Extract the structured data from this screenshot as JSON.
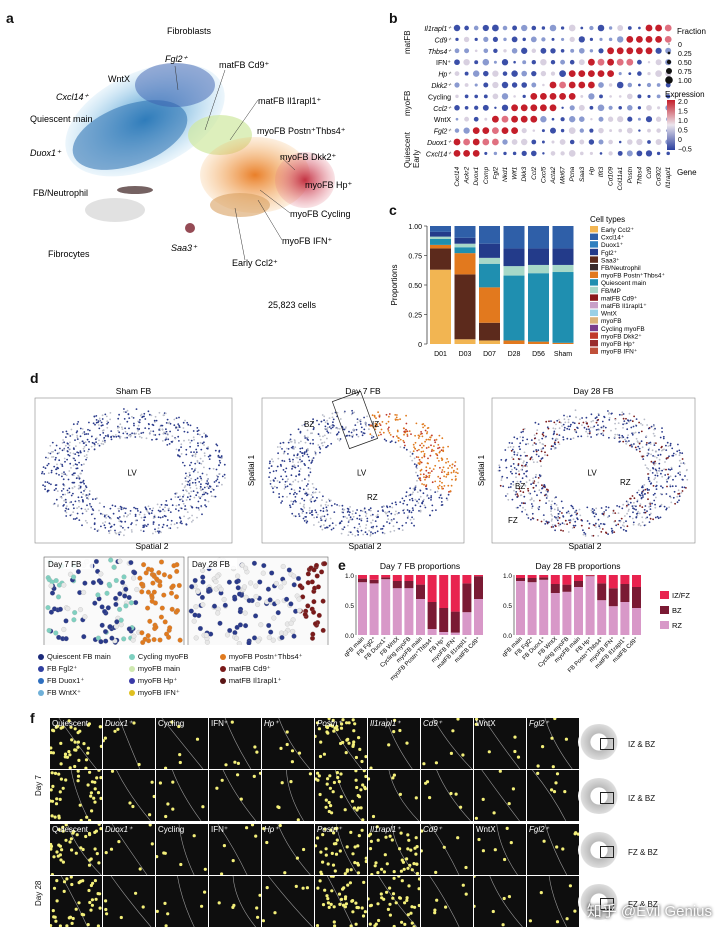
{
  "panels": {
    "a": "a",
    "b": "b",
    "c": "c",
    "d": "d",
    "e": "e",
    "f": "f"
  },
  "panel_a": {
    "title": "Fibroblasts",
    "cell_count": "25,823 cells",
    "labels": [
      "Fgl2⁺",
      "matFB Cd9⁺",
      "WntX",
      "Cxcl14⁺",
      "matFB Il1rapl1⁺",
      "Quiescent main",
      "myoFB Postn⁺Thbs4⁺",
      "Duox1⁺",
      "myoFB Dkk2⁺",
      "myoFB Hp⁺",
      "FB/Neutrophil",
      "myoFB Cycling",
      "Fibrocytes",
      "myoFB IFN⁺",
      "Saa3⁺",
      "Early Ccl2⁺"
    ]
  },
  "panel_b": {
    "rows": [
      "Il1rapl1⁺",
      "Cd9⁺",
      "Thbs4⁺",
      "IFN⁺",
      "Hp⁺",
      "Dkk2⁺",
      "Cycling",
      "Ccl2⁺",
      "WntX",
      "Fgl2⁺",
      "Duox1⁺",
      "Cxcl14⁺"
    ],
    "groups": [
      "matFB",
      "myoFB",
      "Quiescent Early"
    ],
    "genes": [
      "Cxcl14",
      "Ackr2",
      "Duox1",
      "Comp",
      "Fgl2",
      "Nkd1",
      "Wif1",
      "Dkk3",
      "Ccl2",
      "Cxcl5",
      "Acta2",
      "Mki67",
      "Pcna",
      "Saa3",
      "Hp",
      "Ifit3",
      "Cd109",
      "Col11a1",
      "Postn",
      "Thbs4",
      "Cd9",
      "Cd302",
      "Il1rapl1"
    ],
    "gene_axis": "Gene",
    "fraction_title": "Fraction",
    "fraction_values": [
      "0",
      "0.25",
      "0.50",
      "0.75",
      "1.00"
    ],
    "expression_title": "Expression",
    "expression_values": [
      "2.0",
      "1.5",
      "1.0",
      "0.5",
      "0",
      "−0.5"
    ]
  },
  "panel_c": {
    "ylabel": "Proportions",
    "yticks": [
      "0",
      "0.25",
      "0.50",
      "0.75",
      "1.00"
    ],
    "legend_title": "Cell types",
    "legend": [
      {
        "name": "Early Ccl2⁺",
        "color": "#f2b552"
      },
      {
        "name": "Cxcl14⁺",
        "color": "#2f5fa8"
      },
      {
        "name": "Duox1⁺",
        "color": "#2e7fbf"
      },
      {
        "name": "Fgl2⁺",
        "color": "#233b8a"
      },
      {
        "name": "Saa3⁺",
        "color": "#5c2a1c"
      },
      {
        "name": "FB/Neutrophil",
        "color": "#3b2b2b"
      },
      {
        "name": "myoFB Postn⁺Thbs4⁺",
        "color": "#e2791e"
      },
      {
        "name": "Quiescent main",
        "color": "#1f8fb0"
      },
      {
        "name": "FB/MP",
        "color": "#a7d8c8"
      },
      {
        "name": "matFB Cd9⁺",
        "color": "#8b1a1a"
      },
      {
        "name": "matFB Il1rapl1⁺",
        "color": "#c8a0c8"
      },
      {
        "name": "WntX",
        "color": "#9ad0e6"
      },
      {
        "name": "myoFB",
        "color": "#dbb27a"
      },
      {
        "name": "Cycling myoFB",
        "color": "#7a3d8c"
      },
      {
        "name": "myoFB Dkk2⁺",
        "color": "#c0392b"
      },
      {
        "name": "myoFB Hp⁺",
        "color": "#9b2c2c"
      },
      {
        "name": "myoFB IFN⁺",
        "color": "#c0503a"
      }
    ]
  },
  "chart_data": [
    {
      "type": "bar",
      "title": "",
      "xlabel": "",
      "ylabel": "Proportions",
      "ylim": [
        0,
        1
      ],
      "categories": [
        "D01",
        "D03",
        "D07",
        "D28",
        "D56",
        "Sham"
      ],
      "series": [
        {
          "name": "Early Ccl2⁺",
          "values": [
            0.63,
            0.04,
            0.03,
            0.0,
            0.0,
            0.0
          ]
        },
        {
          "name": "Saa3⁺",
          "values": [
            0.18,
            0.55,
            0.15,
            0.0,
            0.0,
            0.0
          ]
        },
        {
          "name": "myoFB Postn⁺Thbs4⁺",
          "values": [
            0.03,
            0.18,
            0.3,
            0.03,
            0.02,
            0.01
          ]
        },
        {
          "name": "Quiescent main",
          "values": [
            0.05,
            0.05,
            0.2,
            0.55,
            0.58,
            0.6
          ]
        },
        {
          "name": "FB/MP",
          "values": [
            0.02,
            0.03,
            0.05,
            0.08,
            0.07,
            0.06
          ]
        },
        {
          "name": "Fgl2⁺",
          "values": [
            0.04,
            0.05,
            0.12,
            0.15,
            0.14,
            0.14
          ]
        },
        {
          "name": "Cxcl14⁺",
          "values": [
            0.05,
            0.1,
            0.15,
            0.19,
            0.19,
            0.19
          ]
        }
      ]
    },
    {
      "type": "bar",
      "title": "Day 7 FB proportions",
      "ylim": [
        0,
        1
      ],
      "categories": [
        "qFB main",
        "FB Fgl2⁺",
        "FB Duox1⁺",
        "FB WntX",
        "Cycling myoFB",
        "myoFB main",
        "myoFB Postn⁺Thbs4⁺",
        "FB Hp⁺",
        "myoFB IFN⁺",
        "matFB Il1rapl1⁺",
        "matFB Cd9⁺"
      ],
      "series": [
        {
          "name": "RZ",
          "values": [
            0.88,
            0.86,
            0.93,
            0.78,
            0.78,
            0.6,
            0.1,
            0.05,
            0.04,
            0.38,
            0.6
          ]
        },
        {
          "name": "BZ",
          "values": [
            0.06,
            0.06,
            0.03,
            0.12,
            0.12,
            0.24,
            0.45,
            0.4,
            0.35,
            0.48,
            0.38
          ]
        },
        {
          "name": "IZ/FZ",
          "values": [
            0.06,
            0.08,
            0.04,
            0.1,
            0.1,
            0.16,
            0.45,
            0.55,
            0.61,
            0.14,
            0.02
          ]
        }
      ]
    },
    {
      "type": "bar",
      "title": "Day 28 FB proportions",
      "ylim": [
        0,
        1
      ],
      "categories": [
        "qFB main",
        "FB Fgl2⁺",
        "FB Duox1⁺",
        "FB WntX",
        "Cycling myoFB",
        "myoFB main",
        "FB Hp⁺",
        "FB Postn⁺Thbs4⁺",
        "myoFB IFN⁺",
        "matFB Il1rapl1⁺",
        "matFB Cd9⁺"
      ],
      "series": [
        {
          "name": "RZ",
          "values": [
            0.9,
            0.88,
            0.92,
            0.7,
            0.72,
            0.8,
            0.98,
            0.58,
            0.48,
            0.55,
            0.45
          ]
        },
        {
          "name": "BZ",
          "values": [
            0.05,
            0.07,
            0.04,
            0.15,
            0.12,
            0.1,
            0.01,
            0.28,
            0.3,
            0.3,
            0.35
          ]
        },
        {
          "name": "IZ/FZ",
          "values": [
            0.05,
            0.05,
            0.04,
            0.15,
            0.16,
            0.1,
            0.01,
            0.14,
            0.22,
            0.15,
            0.2
          ]
        }
      ]
    }
  ],
  "panel_d": {
    "titles": [
      "Sham FB",
      "Day 7 FB",
      "Day 28 FB"
    ],
    "spatial1": "Spatial 1",
    "spatial2": "Spatial 2",
    "lv": "LV",
    "bz": "BZ",
    "iz": "IZ",
    "rz": "RZ",
    "fz": "FZ",
    "zoom1": "Day 7 FB",
    "zoom2": "Day 28 FB",
    "legend": [
      {
        "name": "Quiescent FB main",
        "color": "#1b2a7a"
      },
      {
        "name": "Cycling myoFB",
        "color": "#7fd0c0"
      },
      {
        "name": "myoFB Postn⁺Thbs4⁺",
        "color": "#e07a1e"
      },
      {
        "name": "FB Fgl2⁺",
        "color": "#2f3fa0"
      },
      {
        "name": "myoFB main",
        "color": "#cfe8b0"
      },
      {
        "name": "matFB Cd9⁺",
        "color": "#7a1a1a"
      },
      {
        "name": "FB Duox1⁺",
        "color": "#2e6fbf"
      },
      {
        "name": "myoFB Hp⁺",
        "color": "#3a3aa8"
      },
      {
        "name": "matFB Il1rapl1⁺",
        "color": "#5a1515"
      },
      {
        "name": "FB WntX⁺",
        "color": "#6fb0d8"
      },
      {
        "name": "myoFB IFN⁺",
        "color": "#e0c020"
      }
    ]
  },
  "panel_e": {
    "legend": [
      {
        "name": "IZ/FZ",
        "color": "#e8234f"
      },
      {
        "name": "BZ",
        "color": "#7a1a34"
      },
      {
        "name": "RZ",
        "color": "#d898c8"
      }
    ]
  },
  "panel_f": {
    "row_labels": [
      "Day 7",
      "Day 28"
    ],
    "day7": [
      "Quiescent",
      "Duox1⁺",
      "Cycling",
      "IFN⁺",
      "Hp⁺",
      "Postn⁺",
      "Il1rapl1⁺",
      "Cd9⁺",
      "WntX",
      "Fgl2⁺"
    ],
    "day28": [
      "Quiescent",
      "Duox1⁺",
      "Cycling",
      "IFN⁺",
      "Hp⁺",
      "Postn⁺",
      "Il1rapl1⁺",
      "Cd9⁺",
      "WntX",
      "Fgl2⁺"
    ],
    "region_labels": [
      "IZ & BZ",
      "IZ & BZ",
      "FZ & BZ",
      "FZ & BZ"
    ]
  },
  "watermark": "知乎 @Evil Genius"
}
